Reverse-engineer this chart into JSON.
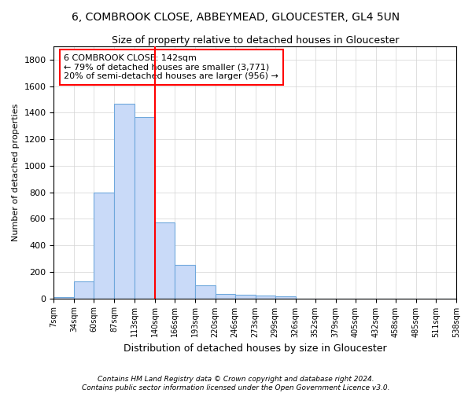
{
  "title1": "6, COMBROOK CLOSE, ABBEYMEAD, GLOUCESTER, GL4 5UN",
  "title2": "Size of property relative to detached houses in Gloucester",
  "xlabel": "Distribution of detached houses by size in Gloucester",
  "ylabel": "Number of detached properties",
  "footnote1": "Contains HM Land Registry data © Crown copyright and database right 2024.",
  "footnote2": "Contains public sector information licensed under the Open Government Licence v3.0.",
  "annotation_line1": "6 COMBROOK CLOSE: 142sqm",
  "annotation_line2": "← 79% of detached houses are smaller (3,771)",
  "annotation_line3": "20% of semi-detached houses are larger (956) →",
  "bar_color": "#c9daf8",
  "bar_edge_color": "#6fa8dc",
  "vline_color": "red",
  "vline_x": 140,
  "bin_edges": [
    7,
    34,
    60,
    87,
    113,
    140,
    166,
    193,
    220,
    246,
    273,
    299,
    326,
    352,
    379,
    405,
    432,
    458,
    485,
    511,
    538
  ],
  "bar_heights": [
    10,
    130,
    800,
    1470,
    1370,
    570,
    250,
    100,
    35,
    25,
    20,
    15,
    0,
    0,
    0,
    0,
    0,
    0,
    0,
    0
  ],
  "ylim": [
    0,
    1900
  ],
  "yticks": [
    0,
    200,
    400,
    600,
    800,
    1000,
    1200,
    1400,
    1600,
    1800
  ],
  "annotation_box_color": "white",
  "annotation_box_edge": "red",
  "title1_fontsize": 10,
  "title2_fontsize": 9,
  "ylabel_fontsize": 8,
  "xlabel_fontsize": 9,
  "ytick_fontsize": 8,
  "xtick_fontsize": 7,
  "annotation_fontsize": 8,
  "footnote_fontsize": 6.5
}
